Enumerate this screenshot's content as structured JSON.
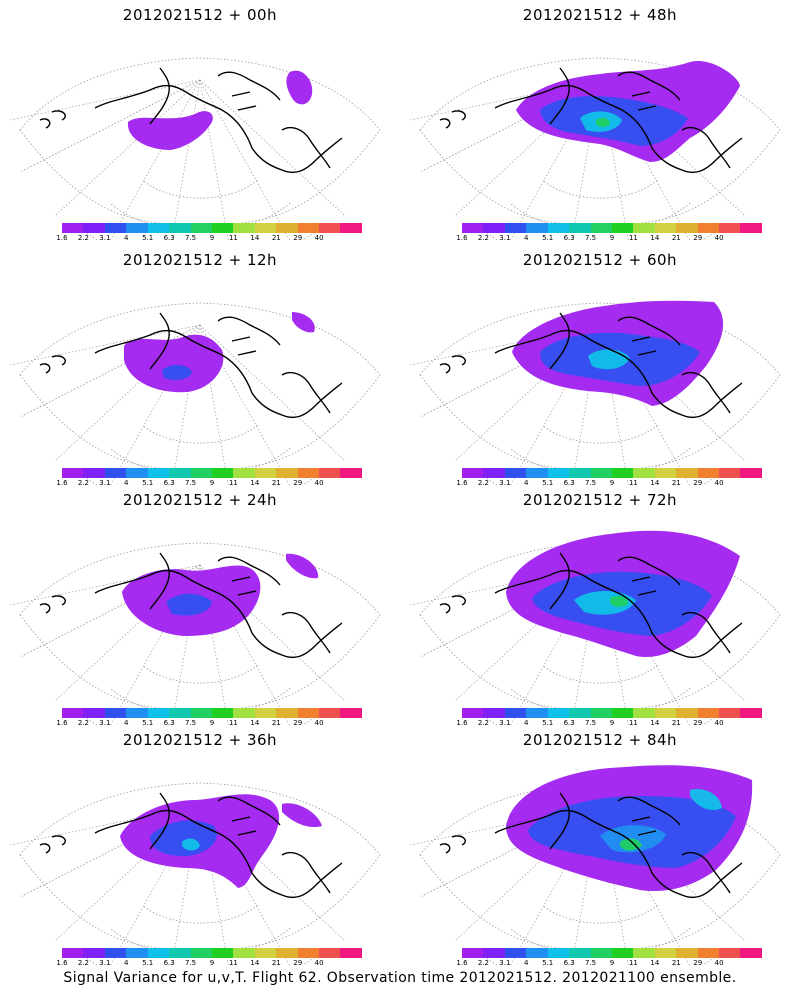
{
  "panels": [
    {
      "title": "2012021512 + 00h",
      "level": 0
    },
    {
      "title": "2012021512 + 48h",
      "level": 4
    },
    {
      "title": "2012021512 + 12h",
      "level": 1
    },
    {
      "title": "2012021512 + 60h",
      "level": 5
    },
    {
      "title": "2012021512 + 24h",
      "level": 2
    },
    {
      "title": "2012021512 + 72h",
      "level": 6
    },
    {
      "title": "2012021512 + 36h",
      "level": 3
    },
    {
      "title": "2012021512 + 84h",
      "level": 7
    }
  ],
  "legend": {
    "labels": [
      "1.6",
      "2.2",
      "3.1",
      "4",
      "5.1",
      "6.3",
      "7.5",
      "9",
      "11",
      "14",
      "21",
      "29",
      "40"
    ],
    "colors": [
      "#a020f0",
      "#8020f8",
      "#3050f0",
      "#2090f0",
      "#10c0e8",
      "#10c8b0",
      "#20d060",
      "#20d020",
      "#a0e040",
      "#d0d040",
      "#e0b030",
      "#f08030",
      "#f05050",
      "#f01880"
    ]
  },
  "colors": {
    "fill_purple": "#a020f0",
    "fill_blue": "#3050f0",
    "fill_lightblue": "#2090f0",
    "fill_cyan": "#10c0e8",
    "fill_green": "#20d060",
    "coast": "#000000",
    "grid": "#999999"
  },
  "caption": "Signal Variance for u,v,T. Flight 62. Observation time 2012021512. 2012021100 ensemble."
}
